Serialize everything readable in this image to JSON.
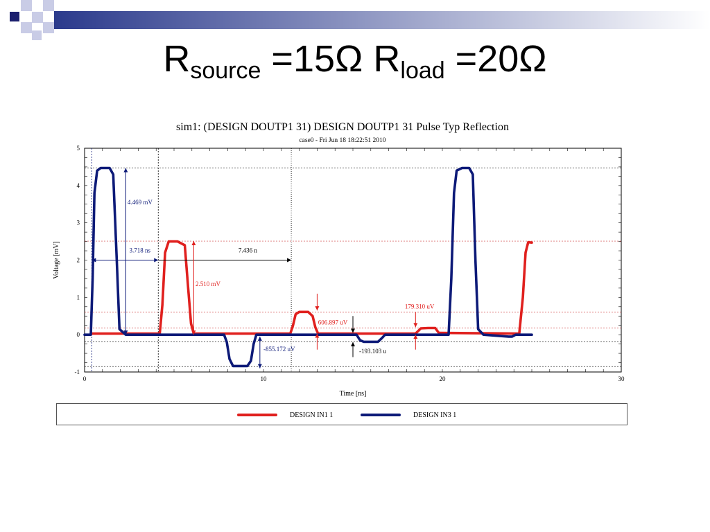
{
  "slide": {
    "title": {
      "part1": "R",
      "sub1": "source",
      "part2": " =15Ω R",
      "sub2": "load",
      "part3": " =20Ω"
    }
  },
  "colors": {
    "red": "#e0201e",
    "blue": "#0d1a78",
    "ref_red": "#d04040",
    "grid": "#000000"
  },
  "chart_data": {
    "type": "line",
    "title": "sim1: (DESIGN DOUTP1 31) DESIGN DOUTP1 31 Pulse Typ Reflection",
    "subtitle": "case0 - Fri Jun 18 18:22:51 2010",
    "xlabel": "Time [ns]",
    "ylabel": "Voltage [mV]",
    "xlim": [
      0,
      30
    ],
    "ylim": [
      -1,
      5
    ],
    "xticks": [
      0,
      10,
      20,
      30
    ],
    "yticks": [
      5,
      4,
      3,
      2,
      1,
      0,
      -1
    ],
    "grid": false,
    "legend_position": "bottom",
    "series": [
      {
        "name": "DESIGN IN1 1",
        "color": "#e0201e",
        "x": [
          0.4,
          4.2,
          4.35,
          4.5,
          4.7,
          5.2,
          5.6,
          5.8,
          5.95,
          6.1,
          11.5,
          11.65,
          11.8,
          12.0,
          12.5,
          12.75,
          12.9,
          13.05,
          18.5,
          18.65,
          18.8,
          19.2,
          19.6,
          19.8,
          24.3,
          24.5,
          24.65,
          24.8,
          25.0
        ],
        "y": [
          0.03,
          0.03,
          0.8,
          2.2,
          2.5,
          2.5,
          2.4,
          1.2,
          0.3,
          0.03,
          0.03,
          0.25,
          0.55,
          0.61,
          0.61,
          0.5,
          0.2,
          0.03,
          0.03,
          0.1,
          0.17,
          0.18,
          0.18,
          0.05,
          0.03,
          1.0,
          2.2,
          2.48,
          2.47
        ]
      },
      {
        "name": "DESIGN IN3 1",
        "color": "#0d1a78",
        "x": [
          0.0,
          0.35,
          0.45,
          0.55,
          0.7,
          0.9,
          1.4,
          1.6,
          1.8,
          1.95,
          2.3,
          7.8,
          7.95,
          8.1,
          8.3,
          9.1,
          9.3,
          9.45,
          9.6,
          15.2,
          15.4,
          15.6,
          16.4,
          16.6,
          16.8,
          20.35,
          20.5,
          20.65,
          20.8,
          21.1,
          21.5,
          21.7,
          21.85,
          22.0,
          22.3,
          23.7,
          23.9,
          24.1,
          25.0
        ],
        "y": [
          0.0,
          0.0,
          1.5,
          3.8,
          4.4,
          4.47,
          4.47,
          4.3,
          2.0,
          0.15,
          0.0,
          0.0,
          -0.2,
          -0.65,
          -0.84,
          -0.84,
          -0.7,
          -0.25,
          0.0,
          0.0,
          -0.15,
          -0.19,
          -0.19,
          -0.1,
          0.0,
          0.0,
          1.5,
          3.8,
          4.4,
          4.47,
          4.47,
          4.3,
          2.0,
          0.15,
          0.0,
          -0.05,
          -0.05,
          0.0,
          0.0
        ]
      }
    ],
    "reference_lines_y": [
      4.469,
      2.51,
      0.607,
      0.179,
      -0.193,
      -0.855
    ],
    "marker_lines_x": [
      0.4,
      4.118,
      11.554
    ],
    "annotations": [
      {
        "label": "4.469 mV",
        "color": "#0d1a78"
      },
      {
        "label": "3.718 ns",
        "color": "#0d1a78"
      },
      {
        "label": "7.436 n",
        "color": "#000000"
      },
      {
        "label": "2.510 mV",
        "color": "#e0201e"
      },
      {
        "label": "606.897 uV",
        "color": "#e0201e"
      },
      {
        "label": "-855.172 uV",
        "color": "#0d1a78"
      },
      {
        "label": "-193.103 u",
        "color": "#000000"
      },
      {
        "label": "179.310 uV",
        "color": "#e0201e"
      }
    ]
  }
}
